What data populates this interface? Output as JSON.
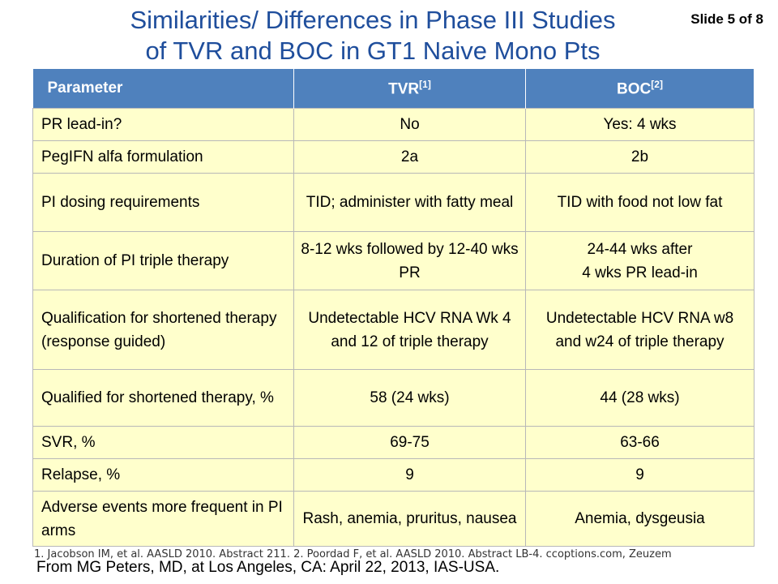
{
  "slide": {
    "title_line1": "Similarities/ Differences in Phase III Studies",
    "title_line2": "of TVR and BOC in GT1 Naive Mono Pts",
    "slide_number": "Slide 5 of 8"
  },
  "table": {
    "headers": {
      "parameter": "Parameter",
      "tvr": "TVR",
      "tvr_ref": "[1]",
      "boc": "BOC",
      "boc_ref": "[2]"
    },
    "rows": [
      {
        "parameter": "PR lead-in?",
        "tvr": "No",
        "boc": "Yes: 4 wks"
      },
      {
        "parameter": "PegIFN alfa formulation",
        "tvr": "2a",
        "boc": "2b"
      },
      {
        "parameter": "PI dosing requirements",
        "tvr": "TID; administer with fatty meal",
        "boc": "TID with food not low fat"
      },
      {
        "parameter": "Duration of PI triple therapy",
        "tvr": "8-12 wks followed by 12-40 wks PR",
        "boc": "24-44 wks after\n4 wks PR lead-in"
      },
      {
        "parameter": "Qualification for shortened therapy (response guided)",
        "tvr": "Undetectable HCV RNA Wk 4 and 12 of triple therapy",
        "boc": "Undetectable HCV RNA w8 and w24 of triple therapy"
      },
      {
        "parameter": "Qualified for shortened therapy, %",
        "tvr": "58 (24 wks)",
        "boc": "44 (28 wks)"
      },
      {
        "parameter": "SVR, %",
        "tvr": "69-75",
        "boc": "63-66"
      },
      {
        "parameter": "Relapse, %",
        "tvr": "9",
        "boc": "9"
      },
      {
        "parameter": "Adverse events more frequent in PI arms",
        "tvr": "Rash, anemia, pruritus, nausea",
        "boc": "Anemia, dysgeusia"
      }
    ]
  },
  "footnote": "1. Jacobson IM, et al. AASLD 2010. Abstract 211. 2. Poordad F, et al. AASLD 2010. Abstract LB-4. ccoptions.com, Zeuzem",
  "source": "From MG Peters, MD, at Los Angeles, CA: April 22, 2013, IAS-USA.",
  "colors": {
    "title": "#1f4e9c",
    "header_bg": "#4f81bd",
    "cell_bg": "#ffffcc"
  }
}
